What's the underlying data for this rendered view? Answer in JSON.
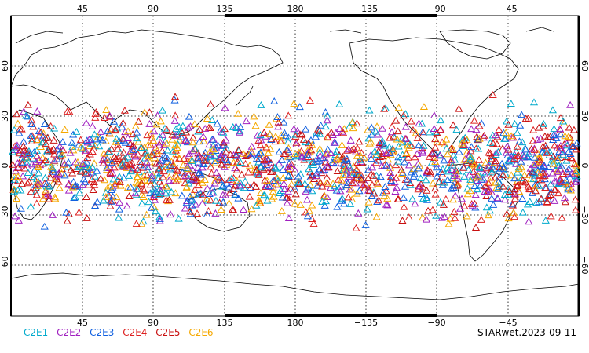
{
  "map": {
    "tick_labels_top": [
      "45",
      "90",
      "135",
      "180",
      "−135",
      "−90",
      "−45"
    ],
    "tick_labels_bottom": [
      "45",
      "90",
      "135",
      "180",
      "−135",
      "−90",
      "−45"
    ],
    "lat_labels": [
      "60",
      "30",
      "0",
      "−30",
      "−60"
    ],
    "frame_color": "#000000",
    "grid": "dotted"
  },
  "legend": {
    "items": [
      {
        "label": "C2E1",
        "color": "#00aacc"
      },
      {
        "label": "C2E2",
        "color": "#a020c0"
      },
      {
        "label": "C2E3",
        "color": "#1060e0"
      },
      {
        "label": "C2E4",
        "color": "#dd2020"
      },
      {
        "label": "C2E5",
        "color": "#c81010"
      },
      {
        "label": "C2E6",
        "color": "#f5a800"
      }
    ]
  },
  "stamp": "STARwet.2023-09-11",
  "observations": {
    "lat_range": [
      -45,
      45
    ],
    "note_visible": ""
  }
}
